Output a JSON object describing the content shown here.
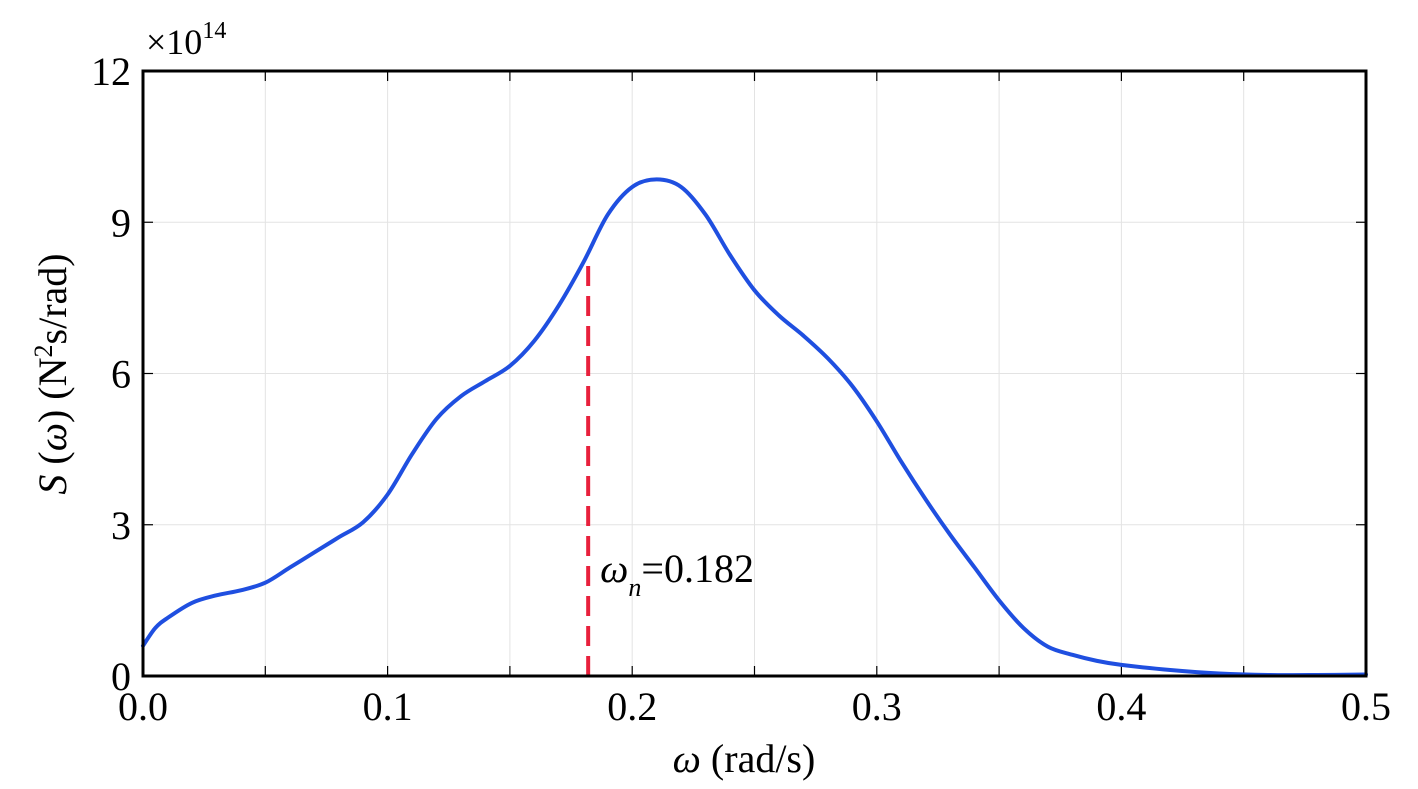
{
  "chart_data": {
    "type": "line",
    "title": "",
    "xlabel": {
      "symbol": "ω",
      "unit": " (rad/s)"
    },
    "ylabel": {
      "symbol": "S",
      "arg_open": " (",
      "arg_symbol": "ω",
      "arg_close": ")",
      "unit_pre": " (N",
      "unit_sup": "2",
      "unit_post": "s/rad)"
    },
    "y_multiplier": {
      "base": "×10",
      "exponent": "14"
    },
    "xlim": [
      0.0,
      0.5
    ],
    "ylim": [
      0,
      12
    ],
    "x_ticks": [
      0.0,
      0.1,
      0.2,
      0.3,
      0.4,
      0.5
    ],
    "x_tick_labels": [
      "0.0",
      "0.1",
      "0.2",
      "0.3",
      "0.4",
      "0.5"
    ],
    "y_ticks": [
      0,
      3,
      6,
      9,
      12
    ],
    "y_tick_labels": [
      "0",
      "3",
      "6",
      "9",
      "12"
    ],
    "x_grid_step": 0.05,
    "y_grid_step": 3,
    "grid": true,
    "series": [
      {
        "color": "#1f4fe0",
        "x": [
          0.0,
          0.005,
          0.01,
          0.02,
          0.03,
          0.04,
          0.05,
          0.06,
          0.07,
          0.08,
          0.09,
          0.1,
          0.11,
          0.12,
          0.13,
          0.14,
          0.15,
          0.16,
          0.17,
          0.18,
          0.19,
          0.2,
          0.21,
          0.22,
          0.23,
          0.24,
          0.25,
          0.26,
          0.27,
          0.28,
          0.29,
          0.3,
          0.31,
          0.32,
          0.33,
          0.34,
          0.35,
          0.36,
          0.37,
          0.38,
          0.39,
          0.4,
          0.42,
          0.44,
          0.46,
          0.48,
          0.5
        ],
        "y": [
          0.6,
          0.95,
          1.15,
          1.45,
          1.6,
          1.7,
          1.85,
          2.15,
          2.45,
          2.75,
          3.05,
          3.6,
          4.4,
          5.1,
          5.55,
          5.85,
          6.15,
          6.65,
          7.35,
          8.2,
          9.15,
          9.7,
          9.85,
          9.7,
          9.15,
          8.35,
          7.65,
          7.15,
          6.75,
          6.3,
          5.75,
          5.05,
          4.25,
          3.5,
          2.8,
          2.15,
          1.5,
          0.95,
          0.58,
          0.42,
          0.3,
          0.22,
          0.12,
          0.05,
          0.02,
          0.02,
          0.03
        ]
      }
    ],
    "markers": [
      {
        "type": "vline",
        "x": 0.182,
        "y_top": 8.25,
        "color": "#e8203c",
        "style": "dashed",
        "label_symbol": "ω",
        "label_sub": "n",
        "label_text": "=0.182"
      }
    ]
  }
}
